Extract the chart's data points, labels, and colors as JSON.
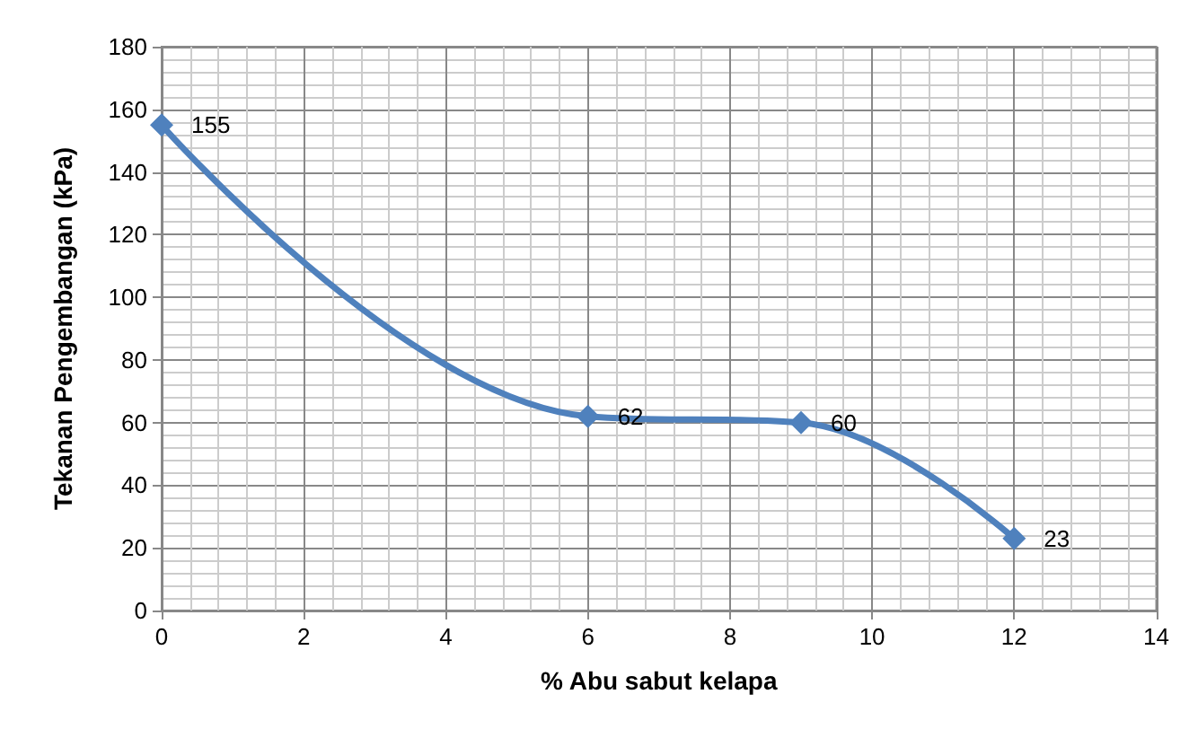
{
  "chart_data": {
    "type": "line",
    "xlabel": "% Abu sabut kelapa",
    "ylabel": "Tekanan Pengembangan (kPa)",
    "x": [
      0,
      6,
      9,
      12
    ],
    "series": [
      {
        "color": "#4f81bd",
        "values": [
          155,
          62,
          60,
          23
        ]
      }
    ],
    "xlim": [
      0,
      14
    ],
    "xticks": [
      0,
      2,
      4,
      6,
      8,
      10,
      12,
      14
    ],
    "ylim": [
      0,
      180
    ],
    "yticks": [
      0,
      20,
      40,
      60,
      80,
      100,
      120,
      140,
      160,
      180
    ],
    "grid": true,
    "marker": "diamond",
    "line_style": "solid",
    "data_labels": true
  }
}
